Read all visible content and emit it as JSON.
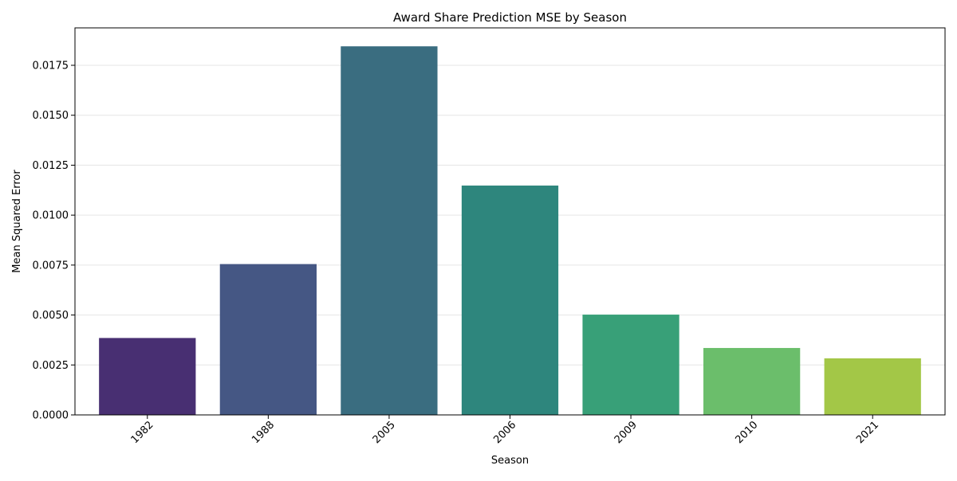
{
  "chart_data": {
    "type": "bar",
    "title": "Award Share Prediction MSE by Season",
    "xlabel": "Season",
    "ylabel": "Mean Squared Error",
    "categories": [
      "1982",
      "1988",
      "2005",
      "2006",
      "2009",
      "2010",
      "2021"
    ],
    "values": [
      0.00385,
      0.00755,
      0.01845,
      0.01148,
      0.00502,
      0.00335,
      0.00283
    ],
    "colors": [
      "#482f72",
      "#455784",
      "#3a6d80",
      "#2e867d",
      "#38a078",
      "#6bbe6b",
      "#a3c747"
    ],
    "ylim": [
      0,
      0.0175
    ],
    "yticks": [
      "0.0000",
      "0.0025",
      "0.0050",
      "0.0075",
      "0.0100",
      "0.0125",
      "0.0150",
      "0.0175"
    ],
    "grid": "y",
    "xtick_rotation": 45
  }
}
